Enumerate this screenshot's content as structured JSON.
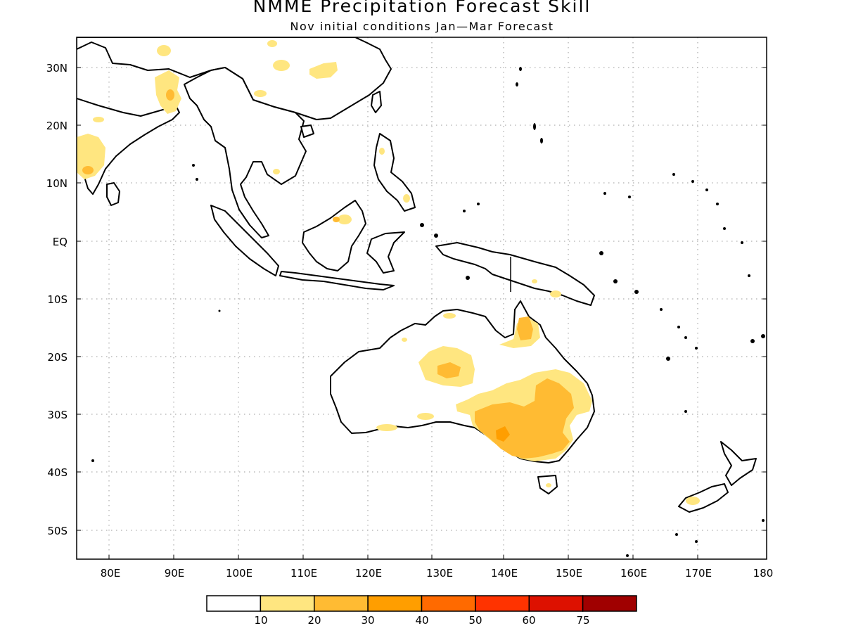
{
  "title": "NMME Precipitation Forecast Skill",
  "subtitle": "Nov initial conditions  Jan—Mar Forecast",
  "axes": {
    "lat_labels": [
      "30N",
      "20N",
      "10N",
      "EQ",
      "10S",
      "20S",
      "30S",
      "40S",
      "50S"
    ],
    "lon_labels": [
      "80E",
      "90E",
      "100E",
      "110E",
      "120E",
      "130E",
      "140E",
      "150E",
      "160E",
      "170E",
      "180"
    ]
  },
  "colorbar": {
    "labels": [
      "10",
      "20",
      "30",
      "40",
      "50",
      "60",
      "75"
    ],
    "colors": [
      "#ffffff",
      "#ffe680",
      "#ffbb33",
      "#ff9e00",
      "#ff6a00",
      "#ff3300",
      "#dd1100",
      "#a00000"
    ]
  }
}
